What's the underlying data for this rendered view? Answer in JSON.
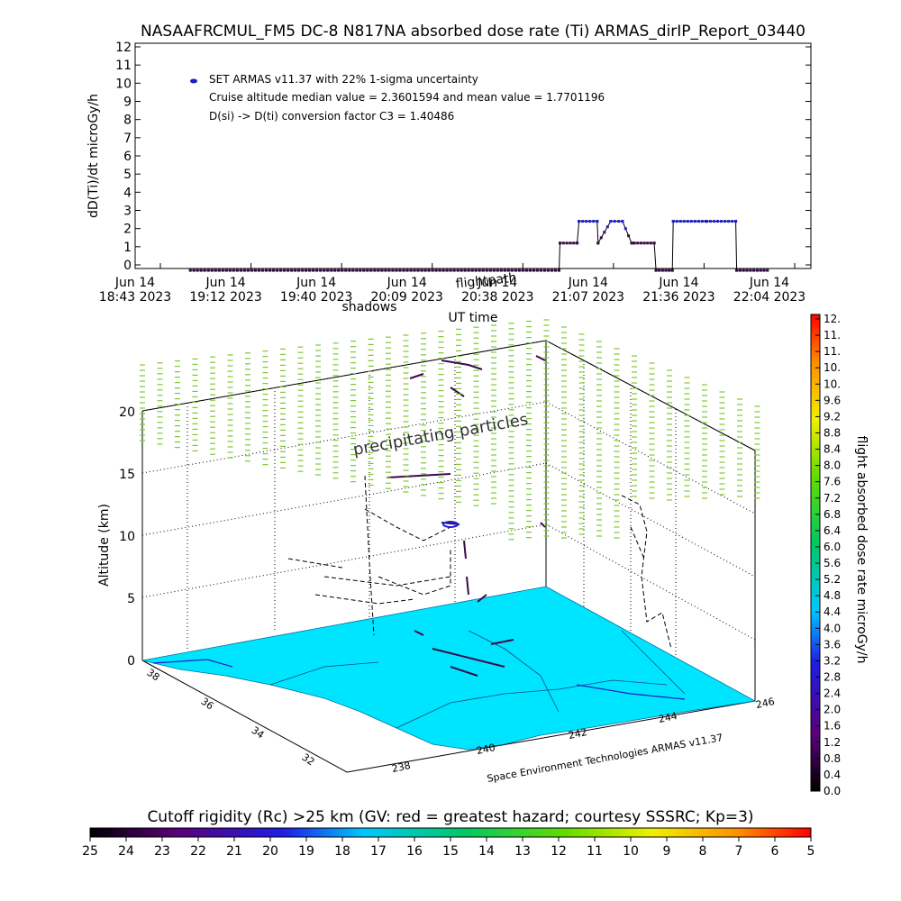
{
  "colors": {
    "terrain": "#00e5ff",
    "trace": "#3a0a4a",
    "marker": "#1e1ec8",
    "particles": "#7ec832",
    "frame": "#000000"
  },
  "chart_data": [
    {
      "type": "line",
      "title": "NASAAFRCMUL_FM5 DC-8   N817NA absorbed dose rate (Ti) ARMAS_dirIP_Report_03440",
      "xlabel": "UT time",
      "ylabel": "dD(Ti)/dt microGy/h",
      "ylim": [
        0,
        12
      ],
      "yticks": [
        "0",
        "1",
        "2",
        "3",
        "4",
        "5",
        "6",
        "7",
        "8",
        "9",
        "10",
        "11",
        "12"
      ],
      "xticks": [
        {
          "t": 0,
          "top": "Jun 14",
          "bottom": "18:43 2023"
        },
        {
          "t": 1,
          "top": "Jun 14",
          "bottom": "19:12 2023"
        },
        {
          "t": 2,
          "top": "Jun 14",
          "bottom": "19:40 2023"
        },
        {
          "t": 3,
          "top": "Jun 14",
          "bottom": "20:09 2023"
        },
        {
          "t": 4,
          "top": "Jun 14",
          "bottom": "20:38 2023"
        },
        {
          "t": 5,
          "top": "Jun 14",
          "bottom": "21:07 2023"
        },
        {
          "t": 6,
          "top": "Jun 14",
          "bottom": "21:36 2023"
        },
        {
          "t": 7,
          "top": "Jun 14",
          "bottom": "22:04 2023"
        }
      ],
      "legend": {
        "entry": "SET ARMAS v11.37 with 22% 1-sigma uncertainty",
        "line2": "Cruise altitude median value = 2.3601594 and mean value = 1.7701196",
        "line3": "D(si) -> D(ti) conversion factor C3 = 1.40486",
        "placement": "top-left"
      },
      "series": [
        {
          "name": "SET ARMAS v11.37 with 22% 1-sigma uncertainty",
          "x": [
            0.33,
            4.4,
            4.41,
            4.6,
            4.62,
            4.82,
            4.83,
            4.97,
            5.1,
            5.2,
            5.23,
            5.45,
            5.47,
            5.65,
            5.66,
            6.02,
            6.03,
            6.35,
            6.36,
            6.7
          ],
          "y": [
            -0.3,
            -0.3,
            1.2,
            1.2,
            2.4,
            2.4,
            1.2,
            2.4,
            2.4,
            1.2,
            1.2,
            1.2,
            -0.3,
            -0.3,
            2.4,
            2.4,
            2.4,
            2.4,
            -0.3,
            -0.3
          ]
        }
      ]
    },
    {
      "type": "scatter",
      "ylabel": "Altitude (km)",
      "zticks": [
        "0",
        "5",
        "10",
        "15",
        "20"
      ],
      "lat_ticks": [
        "38",
        "36",
        "34",
        "32"
      ],
      "lon_ticks": [
        "238",
        "240",
        "242",
        "244",
        "246"
      ],
      "annotations": {
        "particles": "precipitating particles",
        "shadow": "shadows",
        "flightpath": "flightpath",
        "credit": "Space Environment Technologies ARMAS v11.37"
      }
    },
    {
      "type": "heatmap",
      "label": "flight absorbed dose rate microGy/h",
      "ticks": [
        "0.0",
        "0.4",
        "0.8",
        "1.2",
        "1.6",
        "2.0",
        "2.4",
        "2.8",
        "3.2",
        "3.6",
        "4.0",
        "4.4",
        "4.8",
        "5.2",
        "5.6",
        "6.0",
        "6.4",
        "6.8",
        "7.2",
        "7.6",
        "8.0",
        "8.4",
        "8.8",
        "9.2",
        "9.6",
        "10.",
        "10.",
        "11.",
        "11.",
        "12."
      ]
    },
    {
      "type": "heatmap",
      "label": "Cutoff rigidity (Rc) >25 km (GV: red = greatest hazard; courtesy SSSRC; Kp=3)",
      "ticks": [
        "25",
        "24",
        "23",
        "22",
        "21",
        "20",
        "19",
        "18",
        "17",
        "16",
        "15",
        "14",
        "13",
        "12",
        "11",
        "10",
        "9",
        "8",
        "7",
        "6",
        "5"
      ]
    }
  ]
}
